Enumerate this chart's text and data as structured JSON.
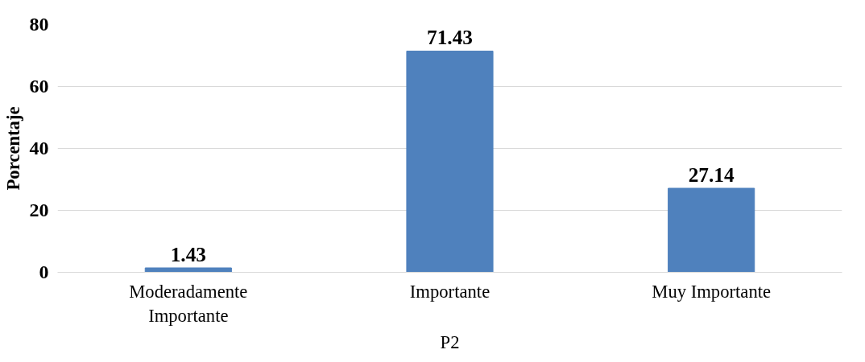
{
  "chart_data": {
    "type": "bar",
    "xlabel": "P2",
    "ylabel": "Porcentaje",
    "categories": [
      "Moderadamente Importante",
      "Importante",
      "Muy Importante"
    ],
    "values": [
      1.43,
      71.43,
      27.14
    ],
    "color": "#4f81bd",
    "ylim": [
      0,
      80
    ],
    "yticks": [
      0,
      20,
      40,
      60,
      80
    ],
    "grid": "y",
    "data_labels": true
  }
}
